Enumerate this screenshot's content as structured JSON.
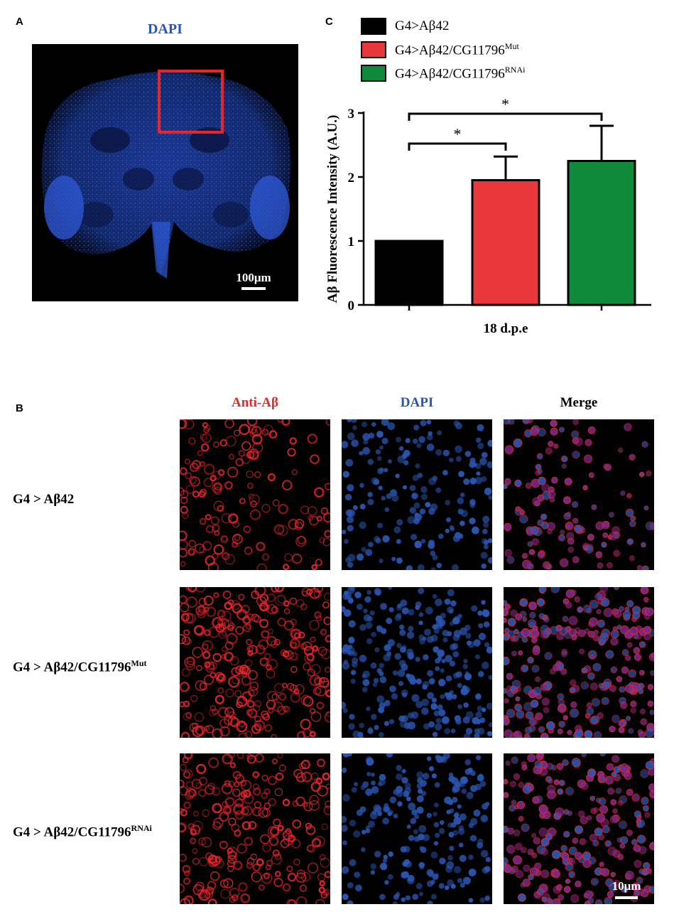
{
  "panel_a": {
    "letter": "A",
    "stain_label": "DAPI",
    "scale_bar_label": "100μm"
  },
  "panel_b": {
    "letter": "B",
    "columns": [
      "Anti-Aβ",
      "DAPI",
      "Merge"
    ],
    "rows": [
      {
        "prefix": "G4 > Aβ42",
        "sup": ""
      },
      {
        "prefix": "G4 > Aβ42/CG11796",
        "sup": "Mut"
      },
      {
        "prefix": "G4 > Aβ42/CG11796",
        "sup": "RNAi"
      }
    ],
    "scale_bar_label": "10μm"
  },
  "panel_c": {
    "letter": "C",
    "legend": [
      {
        "prefix": "G4>Aβ42",
        "sup": "",
        "color": "#000000"
      },
      {
        "prefix": "G4>Aβ42/CG11796",
        "sup": "Mut",
        "color": "#e8383b"
      },
      {
        "prefix": "G4>Aβ42/CG11796",
        "sup": "RNAi",
        "color": "#0e8a3a"
      }
    ],
    "significance": [
      "*",
      "*"
    ]
  },
  "colors": {
    "anti_ab": "#e8262a",
    "dapi": "#2a55b0",
    "merge": "#111111",
    "roi_box": "#e8262a"
  },
  "chart_data": {
    "type": "bar",
    "categories": [
      "G4>Aβ42",
      "G4>Aβ42/CG11796Mut",
      "G4>Aβ42/CG11796RNAi"
    ],
    "series": [
      {
        "values": [
          1.0,
          1.95,
          2.25
        ],
        "errors": [
          0,
          0.37,
          0.55
        ]
      }
    ],
    "bar_colors": [
      "#000000",
      "#e8383b",
      "#0e8a3a"
    ],
    "xlabel": "18 d.p.e",
    "ylabel": "Aβ Fluorescence Intensity (A.U.)",
    "ylim": [
      0,
      3
    ],
    "yticks": [
      0,
      1,
      2,
      3
    ],
    "comparisons": [
      {
        "from": 0,
        "to": 1,
        "label": "*"
      },
      {
        "from": 0,
        "to": 2,
        "label": "*"
      }
    ],
    "grid": false
  }
}
